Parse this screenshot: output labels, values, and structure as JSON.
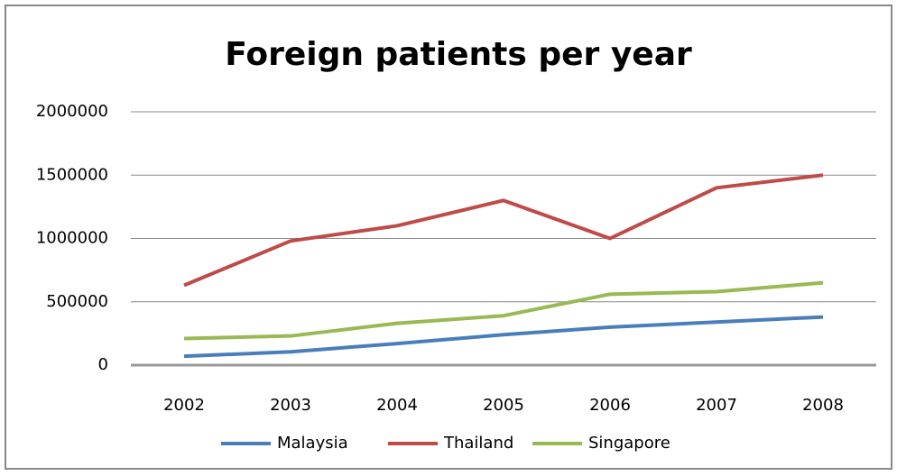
{
  "chart_data": {
    "type": "line",
    "title": "Foreign patients per year",
    "categories": [
      "2002",
      "2003",
      "2004",
      "2005",
      "2006",
      "2007",
      "2008"
    ],
    "series": [
      {
        "name": "Malaysia",
        "color": "#4a7ebb",
        "values": [
          70000,
          105000,
          170000,
          240000,
          300000,
          340000,
          380000
        ]
      },
      {
        "name": "Thailand",
        "color": "#be4b48",
        "values": [
          630000,
          980000,
          1100000,
          1300000,
          1000000,
          1400000,
          1500000
        ]
      },
      {
        "name": "Singapore",
        "color": "#98b954",
        "values": [
          210000,
          230000,
          330000,
          390000,
          560000,
          580000,
          650000
        ]
      }
    ],
    "ylim": [
      0,
      2000000
    ],
    "yticks": [
      0,
      500000,
      1000000,
      1500000,
      2000000
    ],
    "grid": true,
    "legend": "bottom"
  }
}
